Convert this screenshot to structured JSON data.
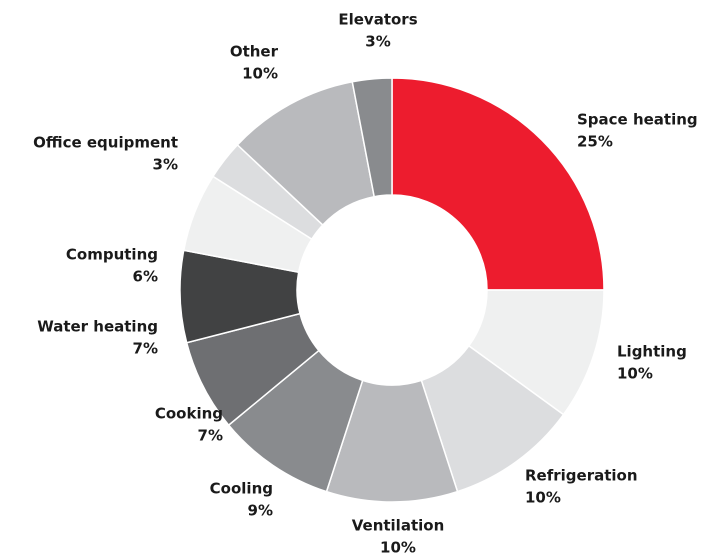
{
  "chart_data": {
    "type": "donut",
    "categories": [
      "Space heating",
      "Lighting",
      "Refrigeration",
      "Ventilation",
      "Cooling",
      "Cooking",
      "Water heating",
      "Computing",
      "Office equipment",
      "Other",
      "Elevators"
    ],
    "values": [
      25,
      10,
      10,
      10,
      9,
      7,
      7,
      6,
      3,
      10,
      3
    ],
    "value_labels": [
      "25%",
      "10%",
      "10%",
      "10%",
      "9%",
      "7%",
      "7%",
      "6%",
      "3%",
      "10%",
      "3%"
    ],
    "colors": [
      "#ed1c2e",
      "#eff0f0",
      "#dcdddf",
      "#b9babd",
      "#898b8e",
      "#6e6f72",
      "#414243",
      "#eff0f0",
      "#dcdddf",
      "#b9babd",
      "#898b8e"
    ]
  }
}
